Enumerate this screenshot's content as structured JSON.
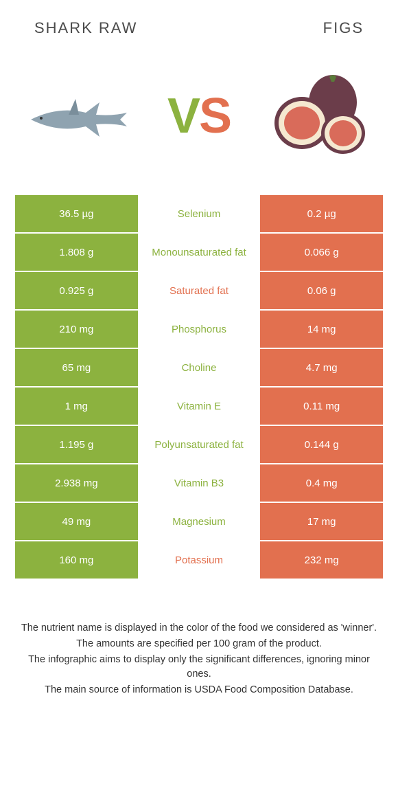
{
  "colors": {
    "green": "#8cb23f",
    "orange": "#e2704f",
    "text": "#333333",
    "white": "#ffffff",
    "headerText": "#4a4a4a"
  },
  "header": {
    "left": "Shark raw",
    "right": "Figs"
  },
  "vs": {
    "v": "V",
    "s": "S"
  },
  "rows": [
    {
      "left": "36.5 µg",
      "label": "Selenium",
      "right": "0.2 µg",
      "winner": "left"
    },
    {
      "left": "1.808 g",
      "label": "Monounsaturated fat",
      "right": "0.066 g",
      "winner": "left"
    },
    {
      "left": "0.925 g",
      "label": "Saturated fat",
      "right": "0.06 g",
      "winner": "right"
    },
    {
      "left": "210 mg",
      "label": "Phosphorus",
      "right": "14 mg",
      "winner": "left"
    },
    {
      "left": "65 mg",
      "label": "Choline",
      "right": "4.7 mg",
      "winner": "left"
    },
    {
      "left": "1 mg",
      "label": "Vitamin E",
      "right": "0.11 mg",
      "winner": "left"
    },
    {
      "left": "1.195 g",
      "label": "Polyunsaturated fat",
      "right": "0.144 g",
      "winner": "left"
    },
    {
      "left": "2.938 mg",
      "label": "Vitamin B3",
      "right": "0.4 mg",
      "winner": "left"
    },
    {
      "left": "49 mg",
      "label": "Magnesium",
      "right": "17 mg",
      "winner": "left"
    },
    {
      "left": "160 mg",
      "label": "Potassium",
      "right": "232 mg",
      "winner": "right"
    }
  ],
  "footnote": {
    "l1": "The nutrient name is displayed in the color of the food we considered as 'winner'.",
    "l2": "The amounts are specified per 100 gram of the product.",
    "l3": "The infographic aims to display only the significant differences, ignoring minor ones.",
    "l4": "The main source of information is USDA Food Composition Database."
  }
}
